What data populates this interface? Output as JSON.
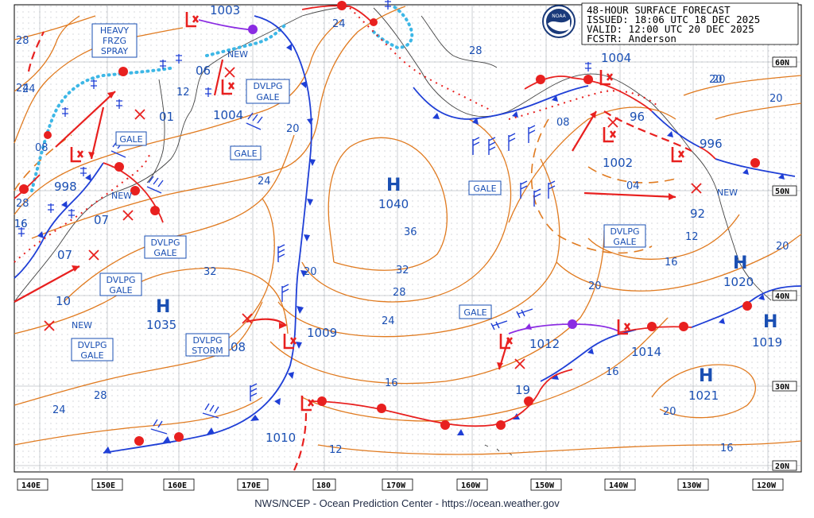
{
  "header": {
    "title": "48-HOUR SURFACE FORECAST",
    "issued": "ISSUED: 18:06 UTC 18 DEC 2025",
    "valid": "VALID:  12:00 UTC 20 DEC 2025",
    "forecaster": "FCSTR:  Anderson"
  },
  "logo_text": "NOAA",
  "footer": "NWS/NCEP - Ocean Prediction Center - https://ocean.weather.gov",
  "axes": {
    "longitudes": [
      "140E",
      "150E",
      "160E",
      "170E",
      "180",
      "170W",
      "160W",
      "150W",
      "140W",
      "130W",
      "120W"
    ],
    "latitudes": [
      "60N",
      "50N",
      "40N",
      "30N",
      "20N"
    ]
  },
  "highs": [
    {
      "letter": "H",
      "pressure": "1040"
    },
    {
      "letter": "H",
      "pressure": "1035"
    },
    {
      "letter": "H",
      "pressure": "1020"
    },
    {
      "letter": "H",
      "pressure": "1019"
    },
    {
      "letter": "H",
      "pressure": "1021"
    }
  ],
  "lows": [
    {
      "letter": "L",
      "pressure": "1003"
    },
    {
      "letter": "L",
      "pressure": "1004"
    },
    {
      "letter": "L",
      "pressure": "06"
    },
    {
      "letter": "L",
      "pressure": "998"
    },
    {
      "letter": "L",
      "pressure": "1009"
    },
    {
      "letter": "L",
      "pressure": "1012"
    },
    {
      "letter": "L",
      "pressure": "1010"
    },
    {
      "letter": "L",
      "pressure": "1004"
    },
    {
      "letter": "L",
      "pressure": "96"
    },
    {
      "letter": "L",
      "pressure": "1002"
    },
    {
      "letter": "L",
      "pressure": "996"
    },
    {
      "letter": "L",
      "pressure": "1014"
    }
  ],
  "other_pressures": [
    "01",
    "07",
    "07",
    "10",
    "08",
    "92",
    "19"
  ],
  "warnings": [
    {
      "lines": [
        "HEAVY",
        "FRZG",
        "SPRAY"
      ]
    },
    {
      "lines": [
        "DVLPG",
        "GALE"
      ]
    },
    {
      "lines": [
        "GALE"
      ]
    },
    {
      "lines": [
        "GALE"
      ]
    },
    {
      "lines": [
        "DVLPG",
        "GALE"
      ]
    },
    {
      "lines": [
        "DVLPG",
        "GALE"
      ]
    },
    {
      "lines": [
        "DVLPG",
        "GALE"
      ]
    },
    {
      "lines": [
        "DVLPG",
        "STORM"
      ]
    },
    {
      "lines": [
        "GALE"
      ]
    },
    {
      "lines": [
        "GALE"
      ]
    },
    {
      "lines": [
        "DVLPG",
        "GALE"
      ]
    }
  ],
  "new_labels": [
    "NEW",
    "NEW",
    "NEW",
    "NEW"
  ],
  "isobar_labels": [
    "28",
    "24",
    "08",
    "12",
    "16",
    "24",
    "20",
    "24",
    "28",
    "32",
    "28",
    "24",
    "36",
    "32",
    "28",
    "24",
    "20",
    "16",
    "12",
    "20",
    "08",
    "04",
    "12",
    "16",
    "20",
    "20",
    "16",
    "20",
    "28",
    "24",
    "16",
    "20",
    "20",
    "16"
  ],
  "colors": {
    "isobar": "#e07a1f",
    "warm_front": "#e8201f",
    "cold_front": "#1f3fd6",
    "occluded": "#8a2be2",
    "ice": "#3db7e6",
    "label_blue": "#1a4fb3",
    "grid": "#9aa0a8"
  }
}
